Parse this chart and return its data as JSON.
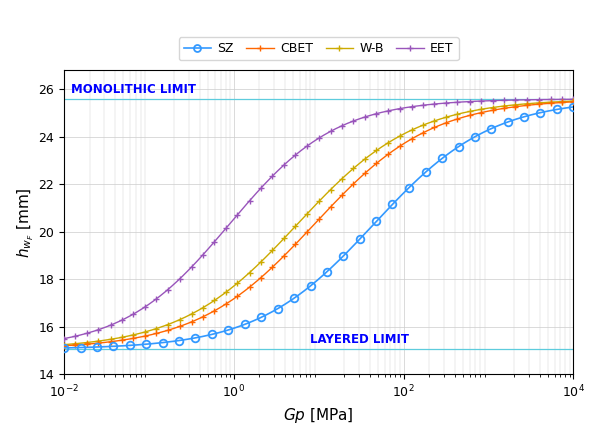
{
  "title": "",
  "xlabel": "$Gp$ [MPa]",
  "ylabel": "$h_{w_F}$ [mm]",
  "xlim": [
    -2,
    4
  ],
  "ylim": [
    14,
    26.8
  ],
  "yticks": [
    14,
    16,
    18,
    20,
    22,
    24,
    26
  ],
  "layered_limit": 15.05,
  "monolithic_limit": 25.6,
  "monolithic_label": "MONOLITHIC LIMIT",
  "layered_label": "LAYERED LIMIT",
  "limit_color": "#5DCCDD",
  "limit_label_color": "#0000FF",
  "sz_color": "#3399FF",
  "cbet_color": "#FF6600",
  "wb_color": "#CCAA00",
  "eet_color": "#9955BB",
  "background_color": "#FFFFFF",
  "grid_color": "#CCCCCC",
  "sz_mid": 1.65,
  "sz_steep": 1.45,
  "cbet_mid": 0.95,
  "cbet_steep": 1.45,
  "wb_mid": 0.75,
  "wb_steep": 1.45,
  "eet_mid": -0.05,
  "eet_steep": 1.6
}
